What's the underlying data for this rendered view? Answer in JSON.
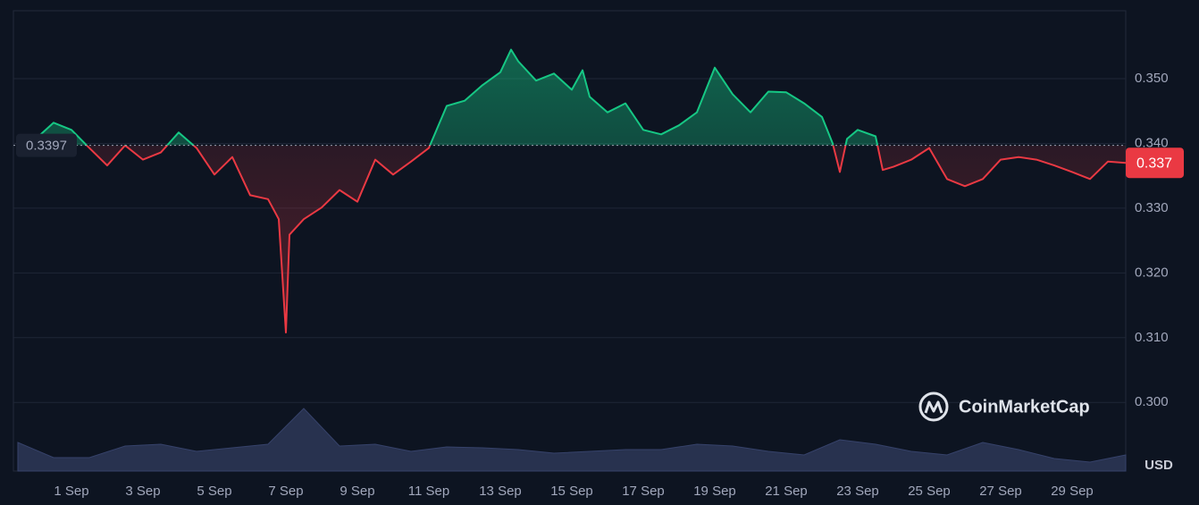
{
  "chart_data": {
    "type": "line",
    "y_axis_unit": "USD",
    "watermark": "CoinMarketCap",
    "reference": {
      "value": 0.3397,
      "label": "0.3397"
    },
    "last_price": {
      "value": 0.337,
      "label": "0.337"
    },
    "up_color": "#16c784",
    "down_color": "#ea3943",
    "xlim": [
      -0.625,
      30.5
    ],
    "xticks": [
      {
        "value": 1,
        "label": "1 Sep"
      },
      {
        "value": 3,
        "label": "3 Sep"
      },
      {
        "value": 5,
        "label": "5 Sep"
      },
      {
        "value": 7,
        "label": "7 Sep"
      },
      {
        "value": 9,
        "label": "9 Sep"
      },
      {
        "value": 11,
        "label": "11 Sep"
      },
      {
        "value": 13,
        "label": "13 Sep"
      },
      {
        "value": 15,
        "label": "15 Sep"
      },
      {
        "value": 17,
        "label": "17 Sep"
      },
      {
        "value": 19,
        "label": "19 Sep"
      },
      {
        "value": 21,
        "label": "21 Sep"
      },
      {
        "value": 23,
        "label": "23 Sep"
      },
      {
        "value": 25,
        "label": "25 Sep"
      },
      {
        "value": 27,
        "label": "27 Sep"
      },
      {
        "value": 29,
        "label": "29 Sep"
      }
    ],
    "ylim": [
      0.2894,
      0.3605
    ],
    "yticks": [
      {
        "value": 0.3,
        "label": "0.300"
      },
      {
        "value": 0.31,
        "label": "0.310"
      },
      {
        "value": 0.32,
        "label": "0.320"
      },
      {
        "value": 0.33,
        "label": "0.330"
      },
      {
        "value": 0.34,
        "label": "0.340"
      },
      {
        "value": 0.35,
        "label": "0.350"
      }
    ],
    "grid": true,
    "series": [
      {
        "x": [
          -0.5,
          0,
          0.5,
          1,
          1.5,
          2,
          2.5,
          3,
          3.5,
          4,
          4.5,
          5,
          5.5,
          6,
          6.5,
          6.8,
          7,
          7.1,
          7.5,
          8,
          8.5,
          9,
          9.5,
          10,
          10.5,
          11,
          11.5,
          12,
          12.5,
          13,
          13.3,
          13.5,
          14,
          14.5,
          15,
          15.3,
          15.5,
          16,
          16.5,
          17,
          17.5,
          18,
          18.5,
          19,
          19.5,
          20,
          20.5,
          21,
          21.5,
          22,
          22.3,
          22.5,
          22.7,
          23,
          23.5,
          23.7,
          24,
          24.5,
          25,
          25.5,
          26,
          26.5,
          27,
          27.5,
          28,
          28.5,
          29,
          29.5,
          30,
          30.5
        ],
        "values": [
          0.3404,
          0.3407,
          0.3432,
          0.3421,
          0.3393,
          0.3366,
          0.3397,
          0.3375,
          0.3386,
          0.3417,
          0.3393,
          0.3352,
          0.3379,
          0.332,
          0.3314,
          0.3283,
          0.3108,
          0.3259,
          0.3283,
          0.3301,
          0.3328,
          0.331,
          0.3375,
          0.3352,
          0.3372,
          0.3393,
          0.3458,
          0.3466,
          0.349,
          0.351,
          0.3545,
          0.3527,
          0.3497,
          0.3508,
          0.3483,
          0.3513,
          0.3472,
          0.3448,
          0.3462,
          0.3421,
          0.3414,
          0.3428,
          0.3448,
          0.3517,
          0.3476,
          0.3448,
          0.348,
          0.3479,
          0.3462,
          0.3441,
          0.34,
          0.3356,
          0.3407,
          0.3421,
          0.3411,
          0.3359,
          0.3364,
          0.3375,
          0.3393,
          0.3345,
          0.3334,
          0.3345,
          0.3375,
          0.3379,
          0.3375,
          0.3366,
          0.3356,
          0.3345,
          0.3372,
          0.337
        ]
      }
    ],
    "volume": {
      "x": [
        -0.5,
        0.5,
        1.5,
        2.5,
        3.5,
        4.5,
        5.5,
        6.5,
        7.5,
        8.5,
        9.5,
        10.5,
        11.5,
        12.5,
        13.5,
        14.5,
        15.5,
        16.5,
        17.5,
        18.5,
        19.5,
        20.5,
        21.5,
        22.5,
        23.5,
        24.5,
        25.5,
        26.5,
        27.5,
        28.5,
        29.5,
        30.5
      ],
      "values": [
        32,
        15,
        15,
        28,
        30,
        22,
        26,
        30,
        70,
        28,
        30,
        22,
        27,
        26,
        24,
        20,
        22,
        24,
        24,
        30,
        28,
        22,
        18,
        35,
        30,
        22,
        18,
        32,
        24,
        14,
        10,
        18
      ]
    }
  }
}
